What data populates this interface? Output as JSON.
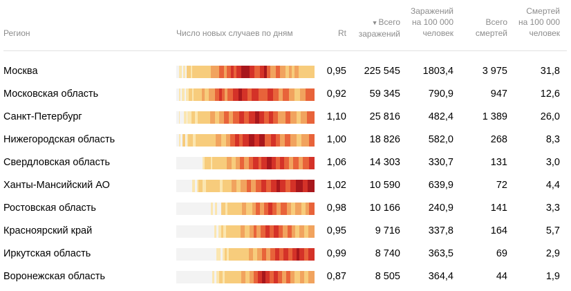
{
  "header": {
    "region": "Регион",
    "chart": "Число новых случаев по дням",
    "rt": "Rt",
    "total_cases": [
      "Всего",
      "заражений"
    ],
    "sort_arrow": "▼",
    "cases_per_100k": [
      "Заражений",
      "на 100 000",
      "человек"
    ],
    "total_deaths": [
      "Всего",
      "смертей"
    ],
    "deaths_per_100k": [
      "Смертей",
      "на 100 000",
      "человек"
    ]
  },
  "colors": {
    "empty": "#f3f3f3",
    "level1": "#fbe6b0",
    "level2": "#f7cc7c",
    "level3": "#f1a35e",
    "level4": "#e8633a",
    "level5": "#d43228",
    "level6": "#a8171c"
  },
  "rows": [
    {
      "region": "Москва",
      "rt": "0,95",
      "total": "225 545",
      "per100k": "1803,4",
      "deaths": "3 975",
      "deaths100k": "31,8",
      "strip": [
        [
          0,
          2
        ],
        [
          1,
          2
        ],
        [
          0,
          1
        ],
        [
          1,
          2
        ],
        [
          0,
          1
        ],
        [
          2,
          3
        ],
        [
          1,
          1
        ],
        [
          2,
          14
        ],
        [
          3,
          6
        ],
        [
          4,
          4
        ],
        [
          3,
          2
        ],
        [
          4,
          3
        ],
        [
          5,
          2
        ],
        [
          4,
          2
        ],
        [
          5,
          4
        ],
        [
          6,
          6
        ],
        [
          5,
          4
        ],
        [
          4,
          4
        ],
        [
          5,
          3
        ],
        [
          6,
          2
        ],
        [
          4,
          3
        ],
        [
          3,
          4
        ],
        [
          4,
          3
        ],
        [
          3,
          4
        ],
        [
          2,
          3
        ],
        [
          3,
          2
        ],
        [
          2,
          2
        ],
        [
          3,
          3
        ],
        [
          2,
          12
        ]
      ]
    },
    {
      "region": "Московская область",
      "rt": "0,92",
      "total": "59 345",
      "per100k": "790,9",
      "deaths": "947",
      "deaths100k": "12,6",
      "strip": [
        [
          0,
          2
        ],
        [
          1,
          1
        ],
        [
          0,
          1
        ],
        [
          1,
          2
        ],
        [
          0,
          1
        ],
        [
          1,
          2
        ],
        [
          2,
          2
        ],
        [
          1,
          1
        ],
        [
          2,
          6
        ],
        [
          3,
          2
        ],
        [
          2,
          3
        ],
        [
          3,
          4
        ],
        [
          4,
          3
        ],
        [
          5,
          2
        ],
        [
          4,
          2
        ],
        [
          3,
          2
        ],
        [
          4,
          4
        ],
        [
          5,
          4
        ],
        [
          6,
          2
        ],
        [
          5,
          4
        ],
        [
          4,
          3
        ],
        [
          5,
          5
        ],
        [
          4,
          6
        ],
        [
          5,
          4
        ],
        [
          4,
          4
        ],
        [
          3,
          3
        ],
        [
          4,
          4
        ],
        [
          3,
          4
        ],
        [
          2,
          4
        ],
        [
          3,
          4
        ],
        [
          4,
          6
        ]
      ]
    },
    {
      "region": "Санкт-Петербург",
      "rt": "1,10",
      "total": "25 816",
      "per100k": "482,4",
      "deaths": "1 389",
      "deaths100k": "26,0",
      "strip": [
        [
          0,
          2
        ],
        [
          1,
          1
        ],
        [
          0,
          3
        ],
        [
          1,
          2
        ],
        [
          0,
          1
        ],
        [
          1,
          3
        ],
        [
          2,
          3
        ],
        [
          1,
          2
        ],
        [
          2,
          10
        ],
        [
          3,
          4
        ],
        [
          2,
          3
        ],
        [
          3,
          4
        ],
        [
          4,
          4
        ],
        [
          3,
          3
        ],
        [
          4,
          5
        ],
        [
          5,
          4
        ],
        [
          4,
          4
        ],
        [
          5,
          5
        ],
        [
          6,
          3
        ],
        [
          5,
          4
        ],
        [
          4,
          4
        ],
        [
          5,
          3
        ],
        [
          4,
          4
        ],
        [
          3,
          6
        ],
        [
          4,
          4
        ],
        [
          3,
          5
        ],
        [
          2,
          3
        ],
        [
          3,
          5
        ],
        [
          4,
          6
        ]
      ]
    },
    {
      "region": "Нижегородская область",
      "rt": "1,00",
      "total": "18 826",
      "per100k": "582,0",
      "deaths": "268",
      "deaths100k": "8,3",
      "strip": [
        [
          0,
          2
        ],
        [
          1,
          1
        ],
        [
          0,
          2
        ],
        [
          2,
          2
        ],
        [
          0,
          1
        ],
        [
          1,
          1
        ],
        [
          2,
          4
        ],
        [
          1,
          2
        ],
        [
          2,
          16
        ],
        [
          3,
          4
        ],
        [
          2,
          4
        ],
        [
          3,
          3
        ],
        [
          4,
          4
        ],
        [
          5,
          3
        ],
        [
          4,
          3
        ],
        [
          5,
          5
        ],
        [
          6,
          4
        ],
        [
          5,
          4
        ],
        [
          6,
          4
        ],
        [
          4,
          5
        ],
        [
          5,
          4
        ],
        [
          4,
          3
        ],
        [
          3,
          4
        ],
        [
          4,
          4
        ],
        [
          3,
          5
        ],
        [
          2,
          4
        ],
        [
          3,
          6
        ],
        [
          4,
          4
        ]
      ]
    },
    {
      "region": "Свердловская область",
      "rt": "1,06",
      "total": "14 303",
      "per100k": "330,7",
      "deaths": "131",
      "deaths100k": "3,0",
      "strip": [
        [
          0,
          24
        ],
        [
          1,
          2
        ],
        [
          2,
          6
        ],
        [
          1,
          1
        ],
        [
          2,
          14
        ],
        [
          3,
          4
        ],
        [
          2,
          4
        ],
        [
          3,
          4
        ],
        [
          4,
          4
        ],
        [
          3,
          4
        ],
        [
          4,
          4
        ],
        [
          5,
          5
        ],
        [
          4,
          3
        ],
        [
          5,
          5
        ],
        [
          6,
          4
        ],
        [
          5,
          4
        ],
        [
          4,
          4
        ],
        [
          5,
          4
        ],
        [
          4,
          4
        ],
        [
          3,
          4
        ],
        [
          4,
          5
        ],
        [
          3,
          4
        ],
        [
          4,
          6
        ],
        [
          5,
          5
        ]
      ]
    },
    {
      "region": "Ханты-Мансийский АО",
      "rt": "1,02",
      "total": "10 590",
      "per100k": "639,9",
      "deaths": "72",
      "deaths100k": "4,4",
      "strip": [
        [
          0,
          14
        ],
        [
          1,
          2
        ],
        [
          0,
          2
        ],
        [
          1,
          1
        ],
        [
          2,
          4
        ],
        [
          1,
          3
        ],
        [
          2,
          12
        ],
        [
          1,
          2
        ],
        [
          2,
          8
        ],
        [
          3,
          4
        ],
        [
          2,
          4
        ],
        [
          3,
          5
        ],
        [
          4,
          4
        ],
        [
          3,
          4
        ],
        [
          4,
          5
        ],
        [
          5,
          4
        ],
        [
          4,
          4
        ],
        [
          5,
          5
        ],
        [
          6,
          3
        ],
        [
          5,
          5
        ],
        [
          4,
          4
        ],
        [
          5,
          5
        ],
        [
          6,
          6
        ],
        [
          5,
          4
        ],
        [
          6,
          6
        ]
      ]
    },
    {
      "region": "Ростовская область",
      "rt": "0,98",
      "total": "10 166",
      "per100k": "240,9",
      "deaths": "141",
      "deaths100k": "3,3",
      "strip": [
        [
          0,
          34
        ],
        [
          1,
          2
        ],
        [
          0,
          2
        ],
        [
          1,
          2
        ],
        [
          0,
          4
        ],
        [
          2,
          4
        ],
        [
          1,
          2
        ],
        [
          2,
          14
        ],
        [
          3,
          4
        ],
        [
          2,
          6
        ],
        [
          3,
          4
        ],
        [
          4,
          4
        ],
        [
          3,
          4
        ],
        [
          4,
          4
        ],
        [
          5,
          4
        ],
        [
          4,
          4
        ],
        [
          3,
          4
        ],
        [
          4,
          6
        ],
        [
          3,
          4
        ],
        [
          2,
          4
        ],
        [
          3,
          6
        ],
        [
          2,
          4
        ],
        [
          3,
          4
        ],
        [
          4,
          5
        ]
      ]
    },
    {
      "region": "Красноярский край",
      "rt": "0,95",
      "total": "9 716",
      "per100k": "337,8",
      "deaths": "164",
      "deaths100k": "5,7",
      "strip": [
        [
          0,
          38
        ],
        [
          1,
          2
        ],
        [
          0,
          2
        ],
        [
          1,
          3
        ],
        [
          2,
          2
        ],
        [
          1,
          3
        ],
        [
          2,
          14
        ],
        [
          3,
          4
        ],
        [
          2,
          5
        ],
        [
          3,
          4
        ],
        [
          4,
          3
        ],
        [
          3,
          4
        ],
        [
          4,
          5
        ],
        [
          5,
          4
        ],
        [
          4,
          4
        ],
        [
          5,
          5
        ],
        [
          4,
          4
        ],
        [
          3,
          5
        ],
        [
          4,
          4
        ],
        [
          3,
          4
        ],
        [
          2,
          4
        ],
        [
          3,
          5
        ],
        [
          2,
          4
        ],
        [
          3,
          6
        ]
      ]
    },
    {
      "region": "Иркутская область",
      "rt": "0,99",
      "total": "8 740",
      "per100k": "363,5",
      "deaths": "69",
      "deaths100k": "2,9",
      "strip": [
        [
          0,
          40
        ],
        [
          1,
          4
        ],
        [
          0,
          2
        ],
        [
          1,
          2
        ],
        [
          2,
          2
        ],
        [
          1,
          2
        ],
        [
          2,
          20
        ],
        [
          3,
          4
        ],
        [
          2,
          4
        ],
        [
          3,
          5
        ],
        [
          4,
          4
        ],
        [
          3,
          4
        ],
        [
          4,
          5
        ],
        [
          5,
          4
        ],
        [
          4,
          4
        ],
        [
          5,
          5
        ],
        [
          4,
          4
        ],
        [
          5,
          4
        ],
        [
          6,
          3
        ],
        [
          5,
          5
        ],
        [
          4,
          4
        ],
        [
          5,
          6
        ]
      ]
    },
    {
      "region": "Воронежская область",
      "rt": "0,87",
      "total": "8 505",
      "per100k": "364,4",
      "deaths": "44",
      "deaths100k": "1,9",
      "strip": [
        [
          0,
          34
        ],
        [
          1,
          2
        ],
        [
          0,
          2
        ],
        [
          1,
          3
        ],
        [
          2,
          3
        ],
        [
          1,
          2
        ],
        [
          2,
          16
        ],
        [
          3,
          4
        ],
        [
          2,
          4
        ],
        [
          3,
          4
        ],
        [
          4,
          4
        ],
        [
          5,
          4
        ],
        [
          6,
          3
        ],
        [
          5,
          4
        ],
        [
          4,
          4
        ],
        [
          5,
          4
        ],
        [
          4,
          4
        ],
        [
          3,
          4
        ],
        [
          4,
          4
        ],
        [
          3,
          4
        ],
        [
          2,
          5
        ],
        [
          3,
          4
        ],
        [
          2,
          4
        ],
        [
          3,
          6
        ]
      ]
    }
  ]
}
